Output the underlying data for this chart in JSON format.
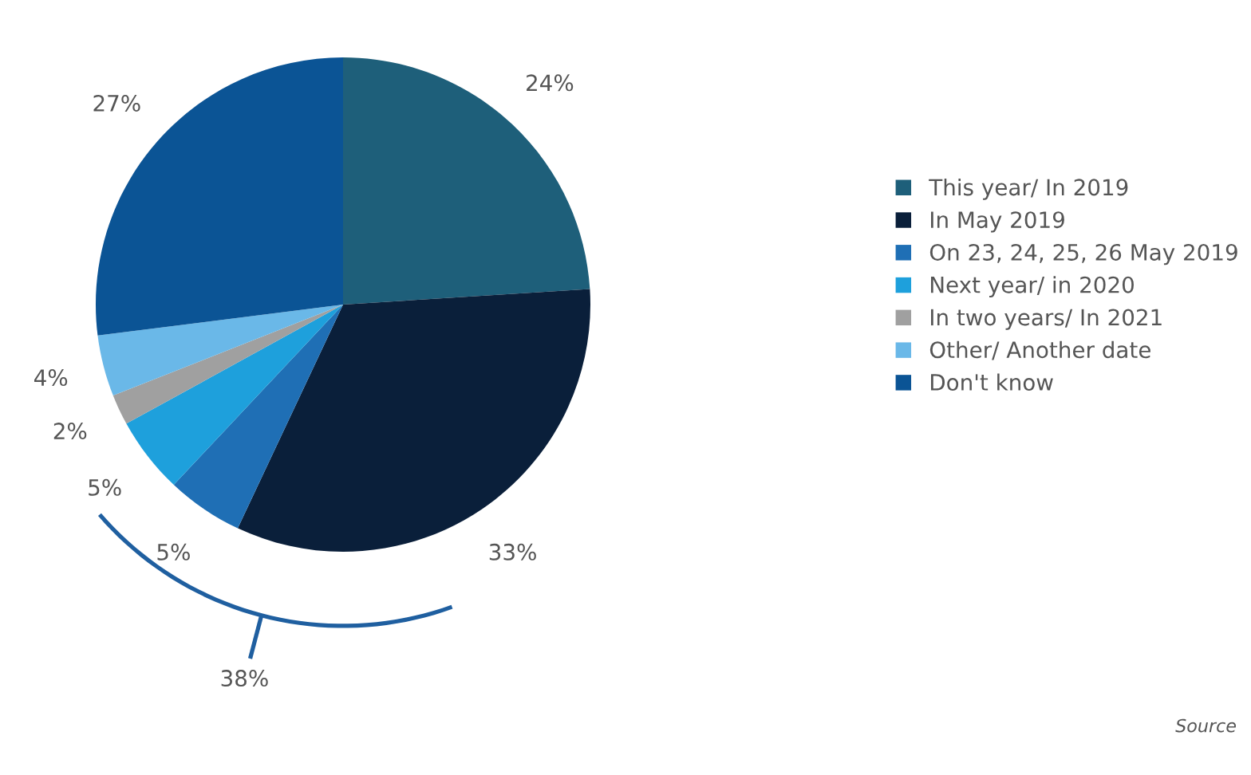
{
  "chart_data": {
    "type": "pie",
    "categories": [
      "This year/ In 2019",
      "In May 2019",
      "On 23, 24, 25, 26 May 2019",
      "Next year/ in 2020",
      "In two years/ In 2021",
      "Other/ Another date",
      "Don't know"
    ],
    "values": [
      24,
      33,
      5,
      5,
      2,
      4,
      27
    ],
    "value_labels": [
      "24%",
      "33%",
      "5%",
      "5%",
      "2%",
      "4%",
      "27%"
    ],
    "colors": [
      "#1e5f7a",
      "#0a1f3a",
      "#1f6fb5",
      "#1ea0dc",
      "#a0a0a0",
      "#6ab8e8",
      "#0b5495"
    ],
    "legend": "right",
    "annotations": [
      "38%",
      "Source"
    ]
  }
}
